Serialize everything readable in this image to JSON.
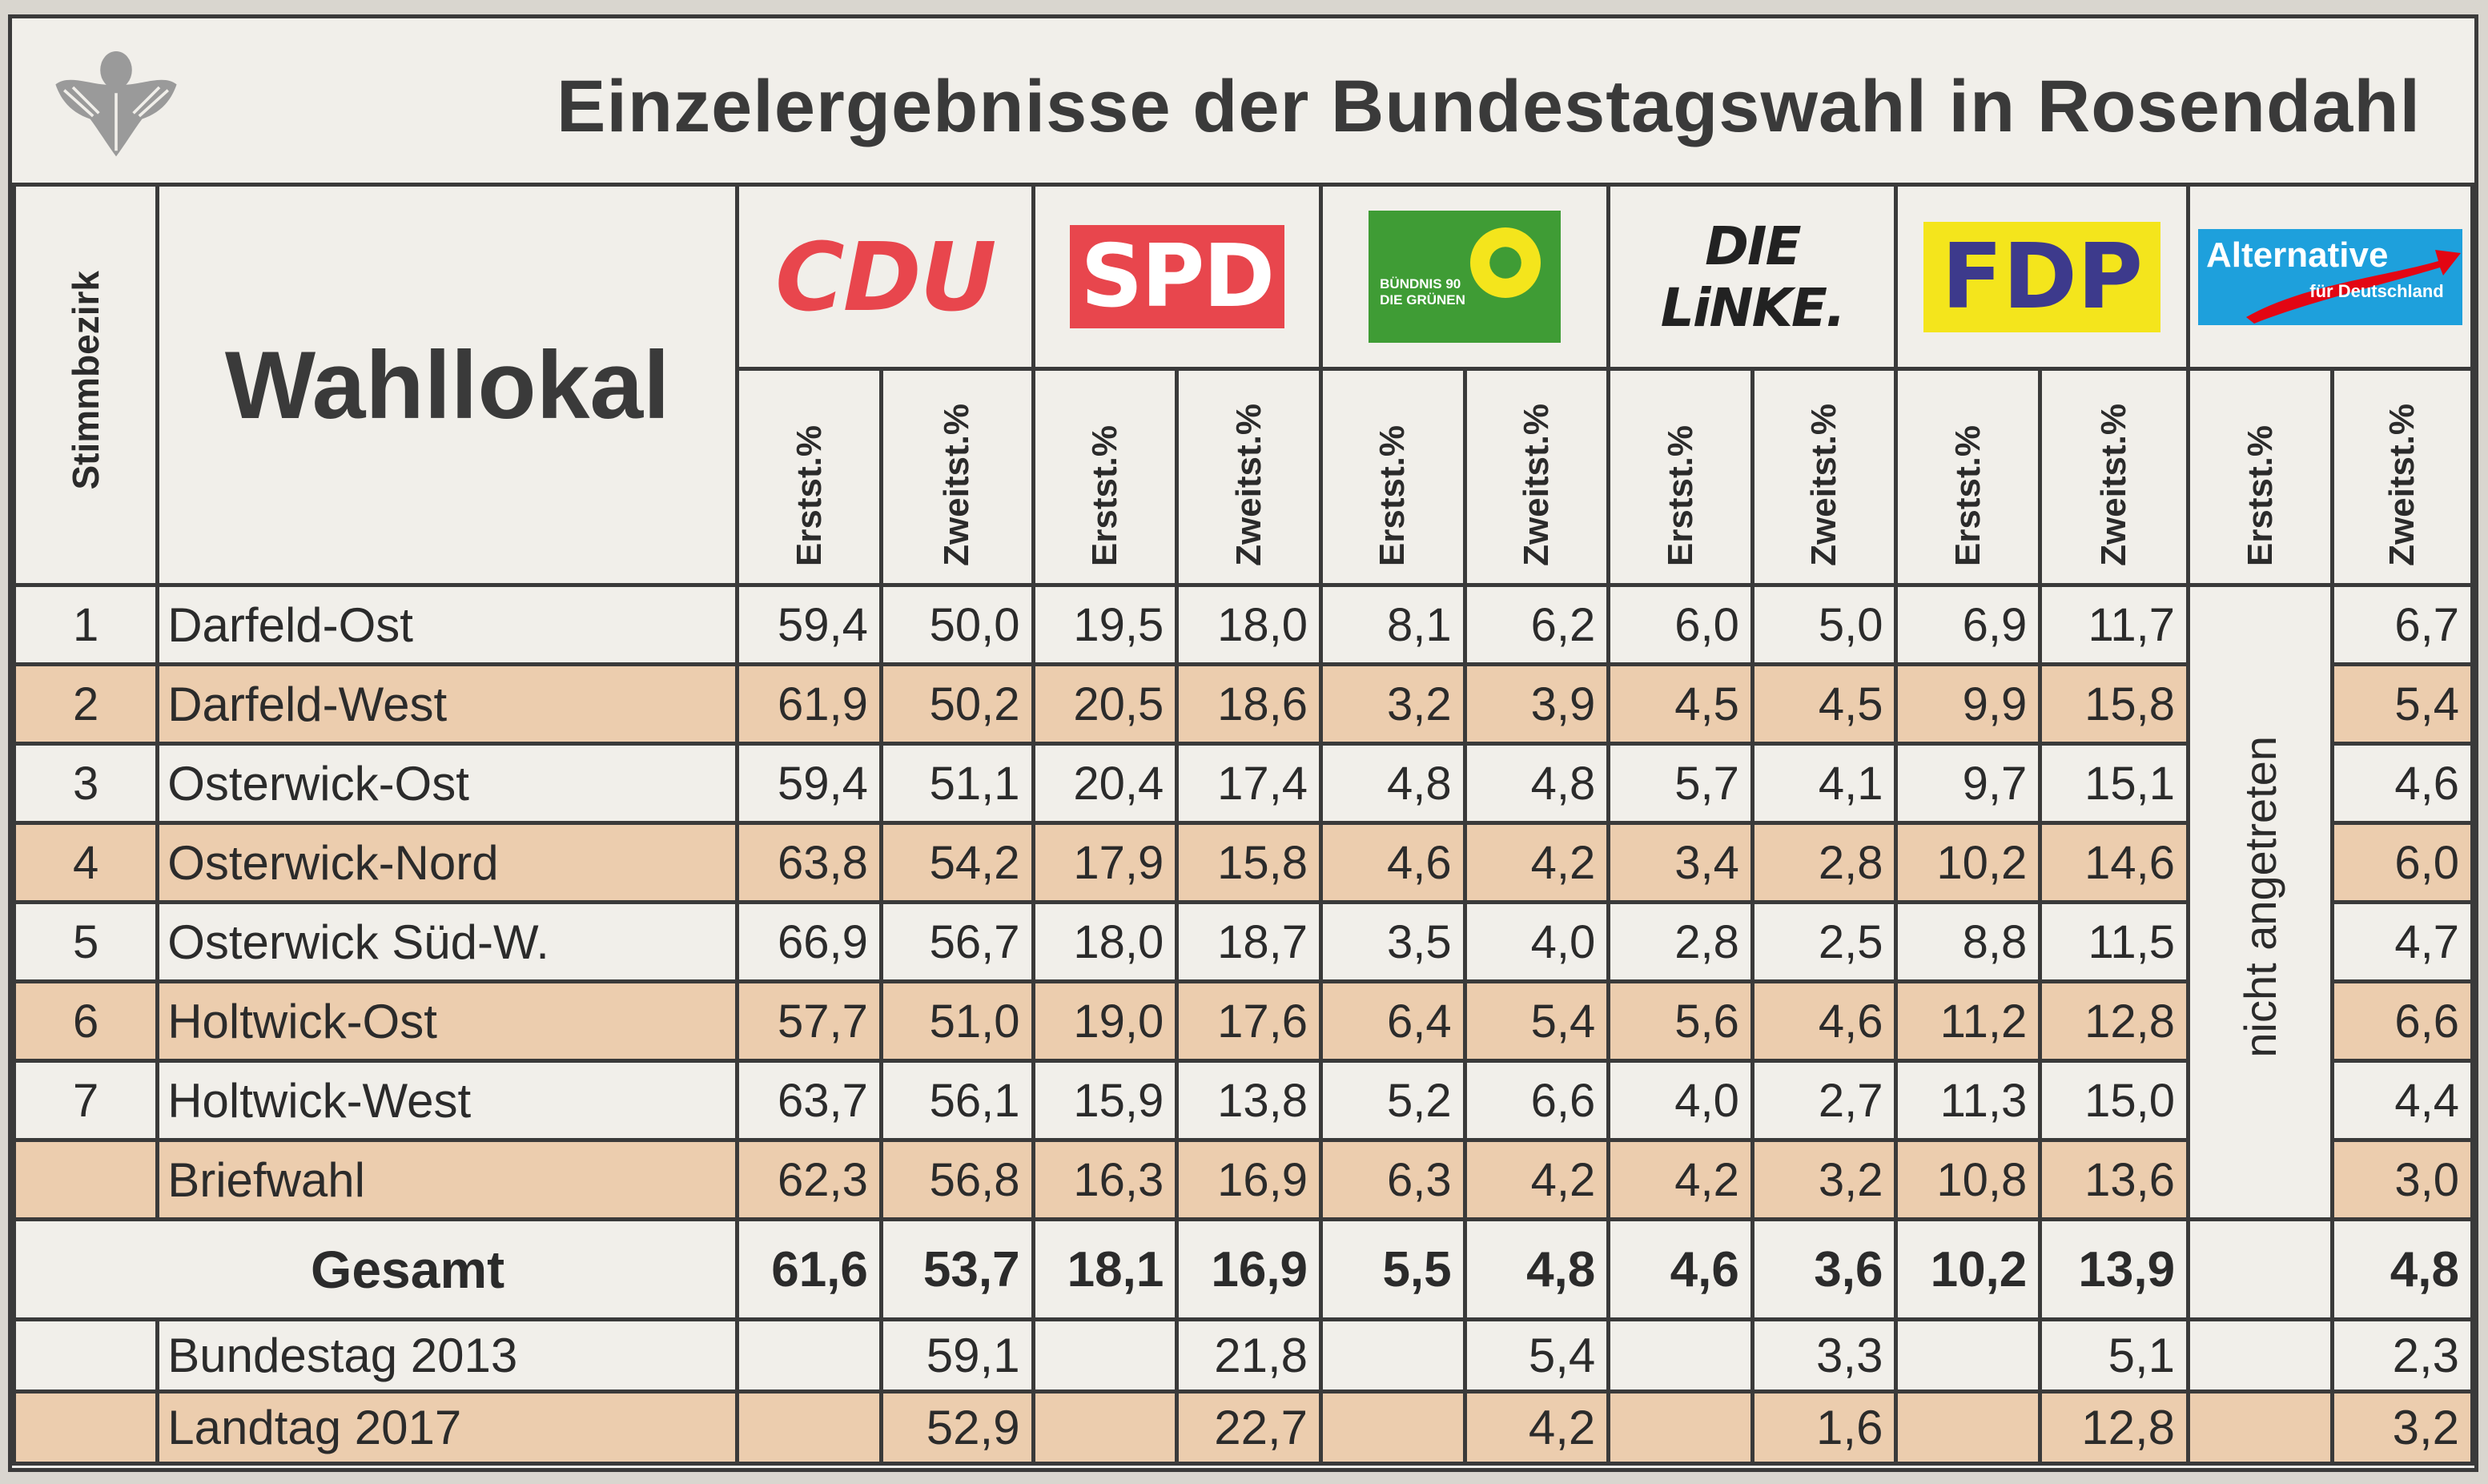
{
  "title": "Einzelergebnisse der Bundestagswahl in Rosendahl",
  "headers": {
    "stimmbezirk": "Stimmbezirk",
    "wahllokal": "Wahllokal",
    "erst": "Erstst.%",
    "zweit": "Zweitst.%",
    "nicht_angetreten": "nicht angetreten"
  },
  "parties": [
    {
      "logo_text": "CDU",
      "color": "#e8464d"
    },
    {
      "logo_text": "SPD",
      "color": "#e8464d"
    },
    {
      "logo_text": "BÜNDNIS 90 DIE GRÜNEN",
      "color": "#3f9c35"
    },
    {
      "logo_text": "DIE LiNKE.",
      "color": "#222222"
    },
    {
      "logo_text": "FDP",
      "color": "#f4e51c"
    },
    {
      "logo_text": "Alternative",
      "logo_subtext": "für Deutschland",
      "color": "#1ea0dc"
    }
  ],
  "rows": [
    {
      "nr": "1",
      "name": "Darfeld-Ost",
      "cdu": [
        "59,4",
        "50,0"
      ],
      "spd": [
        "19,5",
        "18,0"
      ],
      "gruene": [
        "8,1",
        "6,2"
      ],
      "linke": [
        "6,0",
        "5,0"
      ],
      "fdp": [
        "6,9",
        "11,7"
      ],
      "afd": "6,7"
    },
    {
      "nr": "2",
      "name": "Darfeld-West",
      "cdu": [
        "61,9",
        "50,2"
      ],
      "spd": [
        "20,5",
        "18,6"
      ],
      "gruene": [
        "3,2",
        "3,9"
      ],
      "linke": [
        "4,5",
        "4,5"
      ],
      "fdp": [
        "9,9",
        "15,8"
      ],
      "afd": "5,4"
    },
    {
      "nr": "3",
      "name": "Osterwick-Ost",
      "cdu": [
        "59,4",
        "51,1"
      ],
      "spd": [
        "20,4",
        "17,4"
      ],
      "gruene": [
        "4,8",
        "4,8"
      ],
      "linke": [
        "5,7",
        "4,1"
      ],
      "fdp": [
        "9,7",
        "15,1"
      ],
      "afd": "4,6"
    },
    {
      "nr": "4",
      "name": "Osterwick-Nord",
      "cdu": [
        "63,8",
        "54,2"
      ],
      "spd": [
        "17,9",
        "15,8"
      ],
      "gruene": [
        "4,6",
        "4,2"
      ],
      "linke": [
        "3,4",
        "2,8"
      ],
      "fdp": [
        "10,2",
        "14,6"
      ],
      "afd": "6,0"
    },
    {
      "nr": "5",
      "name": "Osterwick Süd-W.",
      "cdu": [
        "66,9",
        "56,7"
      ],
      "spd": [
        "18,0",
        "18,7"
      ],
      "gruene": [
        "3,5",
        "4,0"
      ],
      "linke": [
        "2,8",
        "2,5"
      ],
      "fdp": [
        "8,8",
        "11,5"
      ],
      "afd": "4,7"
    },
    {
      "nr": "6",
      "name": "Holtwick-Ost",
      "cdu": [
        "57,7",
        "51,0"
      ],
      "spd": [
        "19,0",
        "17,6"
      ],
      "gruene": [
        "6,4",
        "5,4"
      ],
      "linke": [
        "5,6",
        "4,6"
      ],
      "fdp": [
        "11,2",
        "12,8"
      ],
      "afd": "6,6"
    },
    {
      "nr": "7",
      "name": "Holtwick-West",
      "cdu": [
        "63,7",
        "56,1"
      ],
      "spd": [
        "15,9",
        "13,8"
      ],
      "gruene": [
        "5,2",
        "6,6"
      ],
      "linke": [
        "4,0",
        "2,7"
      ],
      "fdp": [
        "11,3",
        "15,0"
      ],
      "afd": "4,4"
    },
    {
      "nr": "",
      "name": "Briefwahl",
      "cdu": [
        "62,3",
        "56,8"
      ],
      "spd": [
        "16,3",
        "16,9"
      ],
      "gruene": [
        "6,3",
        "4,2"
      ],
      "linke": [
        "4,2",
        "3,2"
      ],
      "fdp": [
        "10,8",
        "13,6"
      ],
      "afd": "3,0"
    }
  ],
  "total": {
    "name": "Gesamt",
    "cdu": [
      "61,6",
      "53,7"
    ],
    "spd": [
      "18,1",
      "16,9"
    ],
    "gruene": [
      "5,5",
      "4,8"
    ],
    "linke": [
      "4,6",
      "3,6"
    ],
    "fdp": [
      "10,2",
      "13,9"
    ],
    "afd": "4,8"
  },
  "comparisons": [
    {
      "name": "Bundestag 2013",
      "cdu": "59,1",
      "spd": "21,8",
      "gruene": "5,4",
      "linke": "3,3",
      "fdp": "5,1",
      "afd": "2,3"
    },
    {
      "name": "Landtag 2017",
      "cdu": "52,9",
      "spd": "22,7",
      "gruene": "4,2",
      "linke": "1,6",
      "fdp": "12,8",
      "afd": "3,2"
    }
  ]
}
